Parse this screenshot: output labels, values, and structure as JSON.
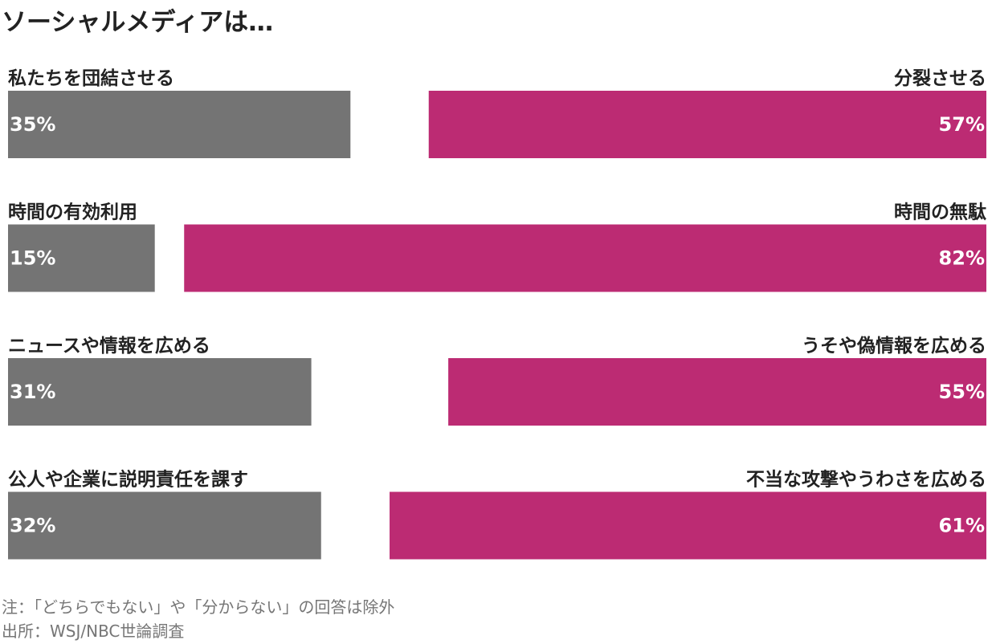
{
  "chart_data": {
    "type": "bar",
    "title": "ソーシャルメディアは…",
    "value_suffix": "%",
    "xlim": [
      0,
      100
    ],
    "colors": {
      "positive": "#747474",
      "negative": "#bc2b73"
    },
    "rows": [
      {
        "positive_label": "私たちを団結させる",
        "positive_value": 35,
        "negative_label": "分裂させる",
        "negative_value": 57
      },
      {
        "positive_label": "時間の有効利用",
        "positive_value": 15,
        "negative_label": "時間の無駄",
        "negative_value": 82
      },
      {
        "positive_label": "ニュースや情報を広める",
        "positive_value": 31,
        "negative_label": "うそや偽情報を広める",
        "negative_value": 55
      },
      {
        "positive_label": "公人や企業に説明責任を課す",
        "positive_value": 32,
        "negative_label": "不当な攻撃やうわさを広める",
        "negative_value": 61
      }
    ]
  },
  "footer": {
    "note": "注：「どちらでもない」や「分からない」の回答は除外",
    "source": "出所：WSJ/NBC世論調査"
  }
}
